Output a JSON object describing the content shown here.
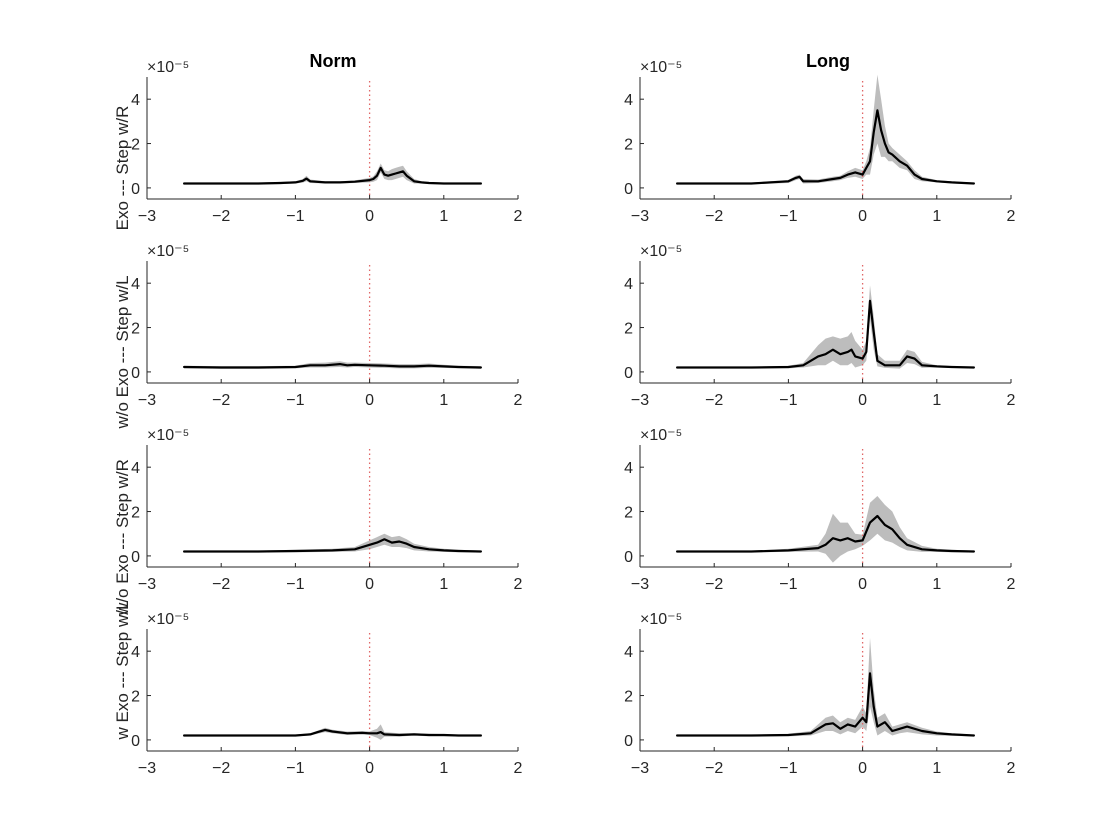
{
  "figure": {
    "column_titles": [
      "Norm",
      "Long"
    ],
    "row_labels": [
      "Exo --- Step w/R",
      "w/o Exo --- Step w/L",
      "w/o Exo --- Step w/R",
      "w Exo --- Step w/L"
    ]
  },
  "colors": {
    "mean_line": "#000000",
    "band": "#bdbdbd",
    "zero_line": "#e06666",
    "axis": "#262626"
  },
  "chart_data": [
    {
      "type": "line",
      "panel": "r1-norm",
      "row": 0,
      "col": 0,
      "title": "Norm",
      "xlim": [
        -3,
        2
      ],
      "ylim": [
        -5e-06,
        5e-05
      ],
      "xticks": [
        -3,
        -2,
        -1,
        0,
        1,
        2
      ],
      "yticks": [
        0,
        2,
        4
      ],
      "ytick_labels": [
        "0",
        "2",
        "4"
      ],
      "y_exponent": "×10⁻⁵",
      "vline_x": 0,
      "x": [
        -2.5,
        -2.0,
        -1.5,
        -1.2,
        -1.0,
        -0.9,
        -0.85,
        -0.8,
        -0.6,
        -0.4,
        -0.2,
        0,
        0.05,
        0.1,
        0.15,
        0.2,
        0.25,
        0.3,
        0.35,
        0.4,
        0.45,
        0.5,
        0.6,
        0.7,
        0.8,
        1.0,
        1.2,
        1.5
      ],
      "mean": [
        0.2,
        0.2,
        0.2,
        0.22,
        0.25,
        0.32,
        0.42,
        0.3,
        0.25,
        0.25,
        0.28,
        0.35,
        0.4,
        0.55,
        0.9,
        0.6,
        0.55,
        0.6,
        0.65,
        0.7,
        0.75,
        0.55,
        0.3,
        0.25,
        0.22,
        0.2,
        0.2,
        0.2
      ],
      "upper": [
        0.24,
        0.24,
        0.24,
        0.27,
        0.3,
        0.4,
        0.55,
        0.38,
        0.3,
        0.3,
        0.34,
        0.45,
        0.52,
        0.75,
        1.1,
        0.8,
        0.75,
        0.85,
        0.9,
        0.95,
        1.0,
        0.75,
        0.4,
        0.3,
        0.27,
        0.24,
        0.24,
        0.24
      ],
      "lower": [
        0.16,
        0.16,
        0.16,
        0.17,
        0.2,
        0.24,
        0.3,
        0.22,
        0.2,
        0.2,
        0.22,
        0.25,
        0.28,
        0.35,
        0.7,
        0.4,
        0.35,
        0.35,
        0.4,
        0.45,
        0.5,
        0.35,
        0.2,
        0.2,
        0.17,
        0.16,
        0.16,
        0.16
      ]
    },
    {
      "type": "line",
      "panel": "r1-long",
      "row": 0,
      "col": 1,
      "title": "Long",
      "xlim": [
        -3,
        2
      ],
      "ylim": [
        -5e-06,
        5e-05
      ],
      "xticks": [
        -3,
        -2,
        -1,
        0,
        1,
        2
      ],
      "yticks": [
        0,
        2,
        4
      ],
      "ytick_labels": [
        "0",
        "2",
        "4"
      ],
      "y_exponent": "×10⁻⁵",
      "vline_x": 0,
      "x": [
        -2.5,
        -2.0,
        -1.5,
        -1.0,
        -0.9,
        -0.85,
        -0.8,
        -0.6,
        -0.4,
        -0.3,
        -0.2,
        -0.1,
        0,
        0.05,
        0.1,
        0.15,
        0.2,
        0.25,
        0.3,
        0.35,
        0.4,
        0.5,
        0.6,
        0.7,
        0.8,
        1.0,
        1.2,
        1.5
      ],
      "mean": [
        0.2,
        0.2,
        0.2,
        0.3,
        0.45,
        0.5,
        0.3,
        0.3,
        0.4,
        0.45,
        0.6,
        0.7,
        0.6,
        0.9,
        1.2,
        2.5,
        3.5,
        2.6,
        2.0,
        1.6,
        1.5,
        1.2,
        1.0,
        0.6,
        0.4,
        0.3,
        0.25,
        0.2
      ],
      "upper": [
        0.24,
        0.24,
        0.24,
        0.36,
        0.55,
        0.6,
        0.4,
        0.38,
        0.5,
        0.55,
        0.75,
        0.9,
        0.8,
        1.2,
        1.8,
        3.5,
        5.1,
        4.0,
        2.8,
        2.0,
        1.8,
        1.5,
        1.2,
        0.8,
        0.5,
        0.35,
        0.3,
        0.24
      ],
      "lower": [
        0.16,
        0.16,
        0.16,
        0.22,
        0.35,
        0.4,
        0.2,
        0.22,
        0.3,
        0.35,
        0.45,
        0.5,
        0.4,
        0.6,
        0.6,
        1.5,
        2.0,
        1.4,
        1.4,
        1.2,
        1.2,
        0.9,
        0.8,
        0.4,
        0.3,
        0.25,
        0.2,
        0.16
      ]
    },
    {
      "type": "line",
      "panel": "r2-norm",
      "row": 1,
      "col": 0,
      "title": "",
      "xlim": [
        -3,
        2
      ],
      "ylim": [
        -5e-06,
        5e-05
      ],
      "xticks": [
        -3,
        -2,
        -1,
        0,
        1,
        2
      ],
      "yticks": [
        0,
        2,
        4
      ],
      "ytick_labels": [
        "0",
        "2",
        "4"
      ],
      "y_exponent": "×10⁻⁵",
      "vline_x": 0,
      "x": [
        -2.5,
        -2.0,
        -1.5,
        -1.0,
        -0.8,
        -0.6,
        -0.4,
        -0.3,
        -0.2,
        0,
        0.2,
        0.4,
        0.6,
        0.8,
        1.0,
        1.2,
        1.5
      ],
      "mean": [
        0.22,
        0.2,
        0.2,
        0.22,
        0.3,
        0.3,
        0.35,
        0.3,
        0.32,
        0.3,
        0.28,
        0.25,
        0.25,
        0.28,
        0.25,
        0.22,
        0.2
      ],
      "upper": [
        0.28,
        0.26,
        0.26,
        0.28,
        0.4,
        0.42,
        0.48,
        0.42,
        0.42,
        0.4,
        0.38,
        0.35,
        0.35,
        0.38,
        0.32,
        0.28,
        0.26
      ],
      "lower": [
        0.16,
        0.14,
        0.14,
        0.16,
        0.2,
        0.2,
        0.22,
        0.2,
        0.22,
        0.2,
        0.18,
        0.16,
        0.16,
        0.18,
        0.18,
        0.16,
        0.14
      ]
    },
    {
      "type": "line",
      "panel": "r2-long",
      "row": 1,
      "col": 1,
      "title": "",
      "xlim": [
        -3,
        2
      ],
      "ylim": [
        -5e-06,
        5e-05
      ],
      "xticks": [
        -3,
        -2,
        -1,
        0,
        1,
        2
      ],
      "yticks": [
        0,
        2,
        4
      ],
      "ytick_labels": [
        "0",
        "2",
        "4"
      ],
      "y_exponent": "×10⁻⁵",
      "vline_x": 0,
      "x": [
        -2.5,
        -2.0,
        -1.5,
        -1.0,
        -0.8,
        -0.6,
        -0.5,
        -0.4,
        -0.3,
        -0.2,
        -0.15,
        -0.1,
        0,
        0.05,
        0.1,
        0.15,
        0.2,
        0.3,
        0.5,
        0.6,
        0.7,
        0.8,
        1.0,
        1.2,
        1.5
      ],
      "mean": [
        0.2,
        0.2,
        0.2,
        0.22,
        0.3,
        0.7,
        0.8,
        1.0,
        0.8,
        0.9,
        1.0,
        0.7,
        0.6,
        0.9,
        3.2,
        1.8,
        0.5,
        0.3,
        0.3,
        0.7,
        0.6,
        0.3,
        0.25,
        0.22,
        0.2
      ],
      "upper": [
        0.24,
        0.24,
        0.24,
        0.28,
        0.4,
        1.2,
        1.5,
        1.6,
        1.5,
        1.6,
        1.8,
        1.4,
        1.0,
        1.4,
        3.9,
        2.5,
        0.8,
        0.5,
        0.5,
        1.0,
        0.9,
        0.45,
        0.3,
        0.26,
        0.24
      ],
      "lower": [
        0.16,
        0.16,
        0.16,
        0.16,
        0.2,
        0.3,
        0.3,
        0.5,
        0.3,
        0.3,
        0.4,
        0.2,
        0.3,
        0.5,
        2.4,
        1.0,
        0.25,
        0.18,
        0.15,
        0.4,
        0.35,
        0.18,
        0.2,
        0.18,
        0.16
      ]
    },
    {
      "type": "line",
      "panel": "r3-norm",
      "row": 2,
      "col": 0,
      "title": "",
      "xlim": [
        -3,
        2
      ],
      "ylim": [
        -5e-06,
        5e-05
      ],
      "xticks": [
        -3,
        -2,
        -1,
        0,
        1,
        2
      ],
      "yticks": [
        0,
        2,
        4
      ],
      "ytick_labels": [
        "0",
        "2",
        "4"
      ],
      "y_exponent": "×10⁻⁵",
      "vline_x": 0,
      "x": [
        -2.5,
        -2.0,
        -1.5,
        -1.0,
        -0.5,
        -0.2,
        0,
        0.1,
        0.2,
        0.3,
        0.4,
        0.5,
        0.6,
        0.8,
        1.0,
        1.2,
        1.5
      ],
      "mean": [
        0.2,
        0.2,
        0.2,
        0.22,
        0.25,
        0.3,
        0.5,
        0.6,
        0.75,
        0.6,
        0.65,
        0.55,
        0.4,
        0.3,
        0.25,
        0.22,
        0.2
      ],
      "upper": [
        0.24,
        0.24,
        0.24,
        0.28,
        0.32,
        0.4,
        0.7,
        0.85,
        1.0,
        0.85,
        0.9,
        0.75,
        0.55,
        0.4,
        0.32,
        0.28,
        0.24
      ],
      "lower": [
        0.16,
        0.16,
        0.16,
        0.16,
        0.18,
        0.2,
        0.3,
        0.4,
        0.5,
        0.4,
        0.4,
        0.35,
        0.25,
        0.2,
        0.18,
        0.16,
        0.16
      ]
    },
    {
      "type": "line",
      "panel": "r3-long",
      "row": 2,
      "col": 1,
      "title": "",
      "xlim": [
        -3,
        2
      ],
      "ylim": [
        -5e-06,
        5e-05
      ],
      "xticks": [
        -3,
        -2,
        -1,
        0,
        1,
        2
      ],
      "yticks": [
        0,
        2,
        4
      ],
      "ytick_labels": [
        "0",
        "2",
        "4"
      ],
      "y_exponent": "×10⁻⁵",
      "vline_x": 0,
      "x": [
        -2.5,
        -2.0,
        -1.5,
        -1.0,
        -0.6,
        -0.5,
        -0.4,
        -0.3,
        -0.2,
        -0.1,
        0,
        0.1,
        0.2,
        0.3,
        0.4,
        0.5,
        0.6,
        0.8,
        1.0,
        1.2,
        1.5
      ],
      "mean": [
        0.2,
        0.2,
        0.2,
        0.25,
        0.35,
        0.5,
        0.8,
        0.7,
        0.8,
        0.65,
        0.7,
        1.5,
        1.8,
        1.4,
        1.2,
        0.8,
        0.5,
        0.3,
        0.25,
        0.22,
        0.2
      ],
      "upper": [
        0.24,
        0.24,
        0.24,
        0.32,
        0.5,
        1.0,
        1.9,
        1.5,
        1.5,
        1.0,
        0.95,
        2.4,
        2.7,
        2.3,
        2.0,
        1.3,
        0.8,
        0.45,
        0.32,
        0.28,
        0.24
      ],
      "lower": [
        0.16,
        0.16,
        0.16,
        0.18,
        0.2,
        0.1,
        -0.3,
        0.0,
        0.2,
        0.3,
        0.45,
        0.7,
        1.0,
        0.7,
        0.6,
        0.4,
        0.25,
        0.18,
        0.18,
        0.16,
        0.16
      ]
    },
    {
      "type": "line",
      "panel": "r4-norm",
      "row": 3,
      "col": 0,
      "title": "",
      "xlim": [
        -3,
        2
      ],
      "ylim": [
        -5e-06,
        5e-05
      ],
      "xticks": [
        -3,
        -2,
        -1,
        0,
        1,
        2
      ],
      "yticks": [
        0,
        2,
        4
      ],
      "ytick_labels": [
        "0",
        "2",
        "4"
      ],
      "y_exponent": "×10⁻⁵",
      "vline_x": 0,
      "x": [
        -2.5,
        -2.0,
        -1.5,
        -1.0,
        -0.8,
        -0.7,
        -0.6,
        -0.5,
        -0.3,
        -0.1,
        0,
        0.1,
        0.15,
        0.2,
        0.4,
        0.6,
        0.8,
        1.0,
        1.2,
        1.5
      ],
      "mean": [
        0.2,
        0.2,
        0.2,
        0.2,
        0.25,
        0.35,
        0.45,
        0.38,
        0.3,
        0.32,
        0.3,
        0.3,
        0.35,
        0.25,
        0.22,
        0.25,
        0.22,
        0.22,
        0.2,
        0.2
      ],
      "upper": [
        0.24,
        0.24,
        0.24,
        0.24,
        0.3,
        0.42,
        0.55,
        0.46,
        0.38,
        0.4,
        0.38,
        0.5,
        0.7,
        0.35,
        0.3,
        0.3,
        0.28,
        0.26,
        0.24,
        0.24
      ],
      "lower": [
        0.16,
        0.16,
        0.16,
        0.16,
        0.2,
        0.28,
        0.35,
        0.3,
        0.22,
        0.24,
        0.22,
        0.1,
        0.0,
        0.15,
        0.15,
        0.2,
        0.16,
        0.16,
        0.16,
        0.16
      ]
    },
    {
      "type": "line",
      "panel": "r4-long",
      "row": 3,
      "col": 1,
      "title": "",
      "xlim": [
        -3,
        2
      ],
      "ylim": [
        -5e-06,
        5e-05
      ],
      "xticks": [
        -3,
        -2,
        -1,
        0,
        1,
        2
      ],
      "yticks": [
        0,
        2,
        4
      ],
      "ytick_labels": [
        "0",
        "2",
        "4"
      ],
      "y_exponent": "×10⁻⁵",
      "vline_x": 0,
      "x": [
        -2.5,
        -2.0,
        -1.5,
        -1.0,
        -0.7,
        -0.5,
        -0.4,
        -0.3,
        -0.2,
        -0.1,
        0,
        0.05,
        0.1,
        0.15,
        0.2,
        0.3,
        0.4,
        0.5,
        0.6,
        0.8,
        1.0,
        1.2,
        1.5
      ],
      "mean": [
        0.2,
        0.2,
        0.2,
        0.22,
        0.3,
        0.7,
        0.75,
        0.5,
        0.7,
        0.6,
        1.0,
        0.8,
        3.0,
        1.5,
        0.6,
        0.8,
        0.4,
        0.5,
        0.6,
        0.4,
        0.3,
        0.25,
        0.2
      ],
      "upper": [
        0.24,
        0.24,
        0.24,
        0.28,
        0.4,
        1.0,
        1.1,
        0.8,
        1.0,
        0.9,
        1.5,
        1.2,
        4.6,
        2.3,
        1.0,
        1.2,
        0.6,
        0.7,
        0.8,
        0.55,
        0.38,
        0.3,
        0.24
      ],
      "lower": [
        0.16,
        0.16,
        0.16,
        0.16,
        0.2,
        0.4,
        0.4,
        0.25,
        0.4,
        0.3,
        0.6,
        0.4,
        1.5,
        0.8,
        0.2,
        0.4,
        0.2,
        0.3,
        0.35,
        0.25,
        0.2,
        0.18,
        0.16
      ]
    }
  ]
}
